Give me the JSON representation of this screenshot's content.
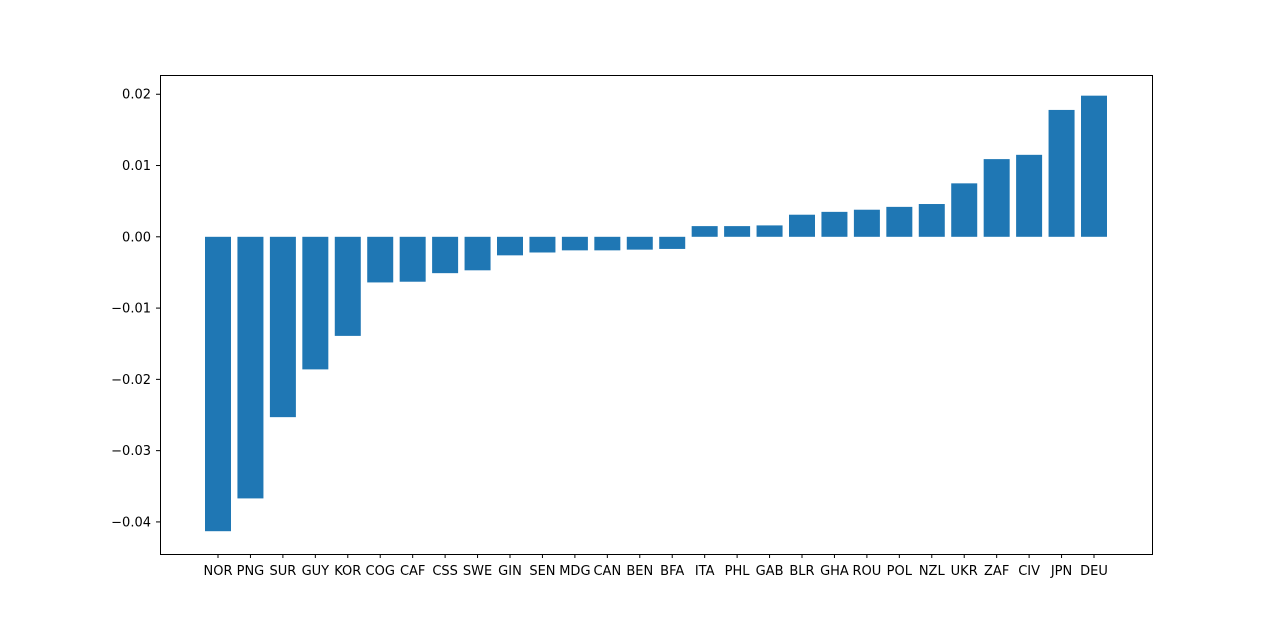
{
  "chart_data": {
    "type": "bar",
    "title": "",
    "xlabel": "",
    "ylabel": "",
    "ylim": [
      -0.0445,
      0.0227
    ],
    "yticks": [
      0.02,
      0.01,
      0.0,
      -0.01,
      -0.02,
      -0.03,
      -0.04
    ],
    "ytick_labels": [
      "0.02",
      "0.01",
      "0.00",
      "−0.01",
      "−0.02",
      "−0.03",
      "−0.04"
    ],
    "grid": false,
    "legend": "none",
    "bar_color": "#1f77b4",
    "categories": [
      "NOR",
      "PNG",
      "SUR",
      "GUY",
      "KOR",
      "COG",
      "CAF",
      "CSS",
      "SWE",
      "GIN",
      "SEN",
      "MDG",
      "CAN",
      "BEN",
      "BFA",
      "ITA",
      "PHL",
      "GAB",
      "BLR",
      "GHA",
      "ROU",
      "POL",
      "NZL",
      "UKR",
      "ZAF",
      "CIV",
      "JPN",
      "DEU"
    ],
    "values": [
      -0.0413,
      -0.0367,
      -0.0253,
      -0.0186,
      -0.0139,
      -0.0064,
      -0.0063,
      -0.0051,
      -0.0047,
      -0.0026,
      -0.0022,
      -0.0019,
      -0.0019,
      -0.0018,
      -0.0017,
      0.0015,
      0.0015,
      0.0016,
      0.0031,
      0.0035,
      0.0038,
      0.0042,
      0.0046,
      0.0075,
      0.0109,
      0.0115,
      0.0178,
      0.0198
    ]
  }
}
